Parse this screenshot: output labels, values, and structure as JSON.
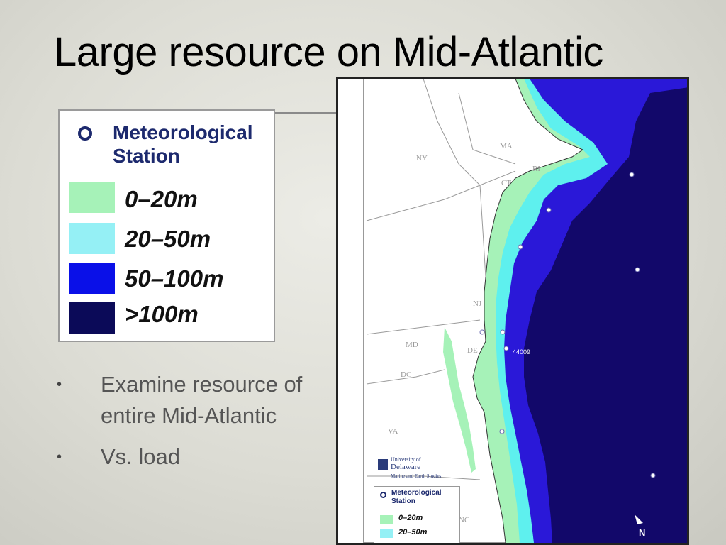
{
  "slide": {
    "title": "Large resource on Mid-Atlantic",
    "bullets": [
      "Examine resource of entire Mid-Atlantic",
      "Vs. load"
    ]
  },
  "legend": {
    "station_label": "Meteorological Station",
    "ranges": [
      {
        "label": "0–20m",
        "color": "#a6f2b8"
      },
      {
        "label": "20–50m",
        "color": "#95f0f5"
      },
      {
        "label": "50–100m",
        "color": "#0a10e8"
      },
      {
        "label": ">100m",
        "color": "#0b0a58"
      }
    ]
  },
  "map": {
    "state_labels": [
      "NY",
      "MA",
      "CT",
      "RI",
      "NJ",
      "MD",
      "DE",
      "DC",
      "VA",
      "NC"
    ],
    "buoy_label": "44009",
    "inset_legend": {
      "station_label": "Meteorological Station",
      "ranges": [
        "0–20m",
        "20–50m"
      ]
    },
    "logo": {
      "line1": "University of",
      "line2": "Delaware",
      "line3": "Marine and Earth Studies"
    },
    "north_label": "N",
    "colors": {
      "land": "#ffffff",
      "depth_0_20": "#a6f2b8",
      "depth_20_50": "#5ef0ee",
      "depth_50_100": "#2a18d8",
      "depth_100_plus": "#12086a"
    }
  }
}
